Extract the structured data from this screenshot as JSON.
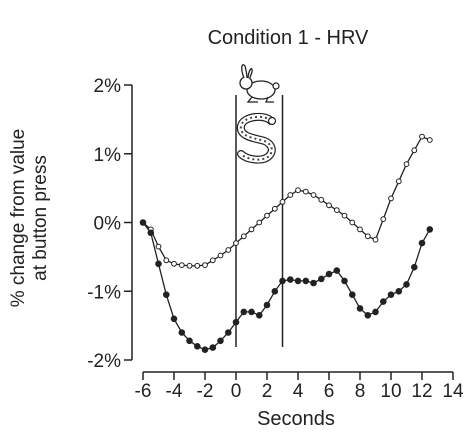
{
  "chart_data": {
    "type": "line",
    "title": "Condition 1 - HRV",
    "xlabel": "Seconds",
    "ylabel_lines": [
      "% change from value",
      "at button press"
    ],
    "xlim": [
      -6,
      14
    ],
    "ylim": [
      -2,
      2
    ],
    "x_ticks": [
      -6,
      -4,
      -2,
      0,
      2,
      4,
      6,
      8,
      10,
      12,
      14
    ],
    "x_tick_labels": [
      "-6",
      "-4",
      "-2",
      "0",
      "2",
      "4",
      "6",
      "8",
      "10",
      "12",
      "14"
    ],
    "y_ticks": [
      2,
      1,
      0,
      -1,
      -2
    ],
    "y_tick_labels": [
      "2%",
      "1%",
      "0%",
      "-1%",
      "-2%"
    ],
    "grid": false,
    "vertical_lines": [
      0,
      3
    ],
    "annotations": [
      {
        "type": "rabbit-icon",
        "x": 1.5
      },
      {
        "type": "snake-icon",
        "x": 1.5
      }
    ],
    "series": [
      {
        "marker": "open-circle",
        "x": [
          -6,
          -5.5,
          -5,
          -4.5,
          -4,
          -3.5,
          -3,
          -2.5,
          -2,
          -1.5,
          -1,
          -0.5,
          0,
          0.5,
          1,
          1.5,
          2,
          2.5,
          3,
          3.5,
          4,
          4.5,
          5,
          5.5,
          6,
          6.5,
          7,
          7.5,
          8,
          8.5,
          9,
          9.5,
          10,
          10.5,
          11,
          11.5,
          12,
          12.5
        ],
        "y": [
          0,
          -0.1,
          -0.35,
          -0.55,
          -0.6,
          -0.62,
          -0.63,
          -0.63,
          -0.62,
          -0.55,
          -0.48,
          -0.4,
          -0.3,
          -0.2,
          -0.1,
          0,
          0.1,
          0.2,
          0.3,
          0.4,
          0.47,
          0.45,
          0.4,
          0.33,
          0.25,
          0.18,
          0.1,
          0,
          -0.1,
          -0.2,
          -0.25,
          0.05,
          0.35,
          0.6,
          0.85,
          1.05,
          1.25,
          1.2
        ]
      },
      {
        "marker": "filled-circle",
        "x": [
          -6,
          -5.5,
          -5,
          -4.5,
          -4,
          -3.5,
          -3,
          -2.5,
          -2,
          -1.5,
          -1,
          -0.5,
          0,
          0.5,
          1,
          1.5,
          2,
          2.5,
          3,
          3.5,
          4,
          4.5,
          5,
          5.5,
          6,
          6.5,
          7,
          7.5,
          8,
          8.5,
          9,
          9.5,
          10,
          10.5,
          11,
          11.5,
          12,
          12.5
        ],
        "y": [
          0,
          -0.15,
          -0.6,
          -1.05,
          -1.4,
          -1.6,
          -1.72,
          -1.8,
          -1.85,
          -1.82,
          -1.72,
          -1.6,
          -1.45,
          -1.3,
          -1.3,
          -1.35,
          -1.2,
          -1.0,
          -0.85,
          -0.83,
          -0.85,
          -0.85,
          -0.88,
          -0.82,
          -0.75,
          -0.7,
          -0.85,
          -1.05,
          -1.25,
          -1.35,
          -1.3,
          -1.15,
          -1.05,
          -1.0,
          -0.9,
          -0.65,
          -0.3,
          -0.1
        ]
      }
    ]
  }
}
